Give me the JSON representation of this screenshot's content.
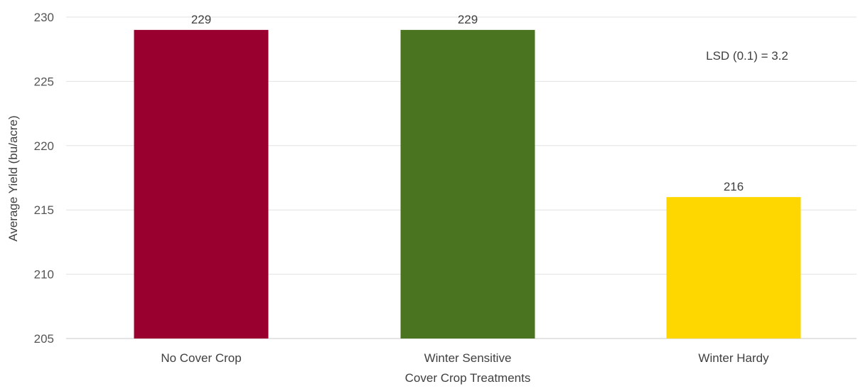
{
  "chart_data": {
    "type": "bar",
    "categories": [
      "No Cover Crop",
      "Winter Sensitive",
      "Winter Hardy"
    ],
    "values": [
      229,
      229,
      216
    ],
    "value_labels": [
      "229",
      "229",
      "216"
    ],
    "colors": [
      "#990030",
      "#4a741f",
      "#ffd700"
    ],
    "xlabel": "Cover Crop Treatments",
    "ylabel": "Average Yield (bu/acre)",
    "ylim": [
      205,
      230
    ],
    "yticks": [
      205,
      210,
      215,
      220,
      225,
      230
    ],
    "grid": true,
    "annotation": "LSD (0.1) = 3.2"
  }
}
